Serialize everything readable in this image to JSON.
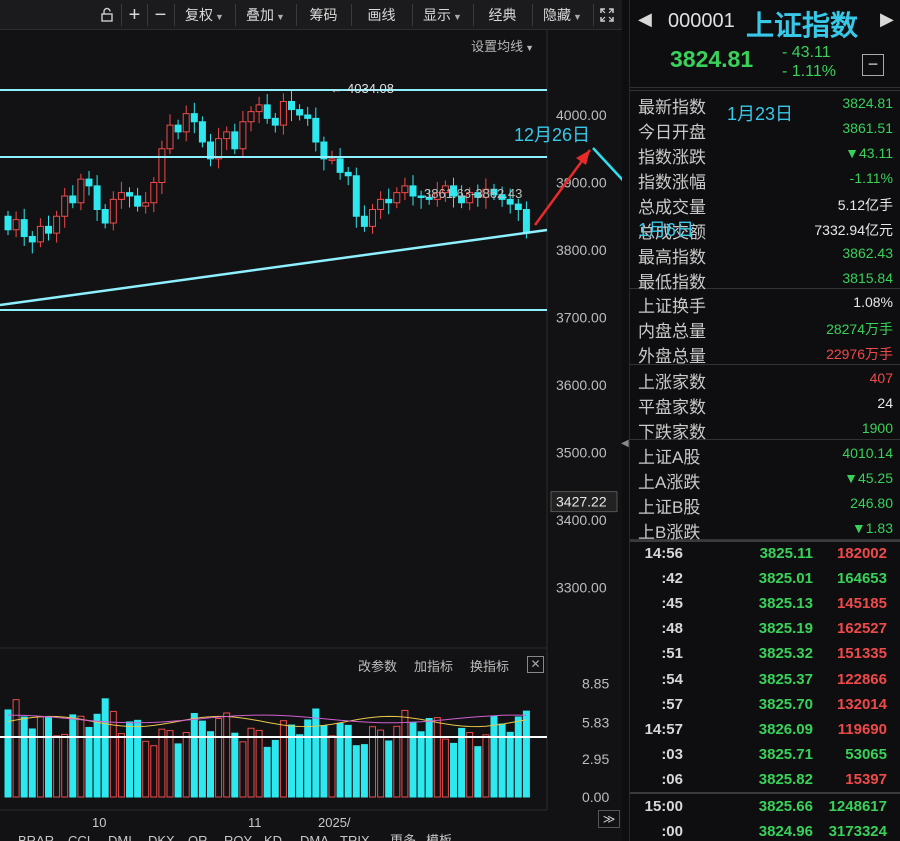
{
  "toolbar": {
    "items": [
      "复权",
      "叠加",
      "筹码",
      "画线",
      "显示",
      "经典",
      "隐藏"
    ],
    "ma_setting": "设置均线"
  },
  "price_axis": [
    "4000.00",
    "3900.00",
    "3800.00",
    "3700.00",
    "3600.00",
    "3500.00",
    "3427.22",
    "3400.00",
    "3300.00"
  ],
  "chart_labels": {
    "high_marker": "4034.08",
    "mid_label": "3861.63-3862.43",
    "ann_dec26": "12月26日",
    "ann_jan23": "1月23日",
    "ann_jan6": "1月6日"
  },
  "volume_panel": {
    "buttons": [
      "改参数",
      "加指标",
      "换指标"
    ],
    "axis": [
      "8.85",
      "5.83",
      "2.95",
      "0.00"
    ]
  },
  "date_axis": [
    "10",
    "11",
    "2025/"
  ],
  "bottom_tabs": [
    "BRAR",
    "CCI",
    "DMI",
    "DKX",
    "OR",
    "ROY",
    "KD",
    "DMA",
    "TRIX",
    "更多",
    "模板"
  ],
  "header": {
    "code": "000001",
    "name": "上证指数",
    "price": "3824.81",
    "change": "- 43.11",
    "change_pct": "- 1.11%"
  },
  "quote_rows": [
    {
      "label": "最新指数",
      "value": "3824.81",
      "color": "green"
    },
    {
      "label": "今日开盘",
      "value": "3861.51",
      "color": "green"
    },
    {
      "label": "指数涨跌",
      "value": "▼43.11",
      "color": "green"
    },
    {
      "label": "指数涨幅",
      "value": "-1.11%",
      "color": "green"
    },
    {
      "label": "总成交量",
      "value": "5.12亿手",
      "color": "white"
    },
    {
      "label": "总成交额",
      "value": "7332.94亿元",
      "color": "white"
    },
    {
      "label": "最高指数",
      "value": "3862.43",
      "color": "green"
    },
    {
      "label": "最低指数",
      "value": "3815.84",
      "color": "green"
    },
    {
      "label": "上证换手",
      "value": "1.08%",
      "color": "white"
    },
    {
      "label": "内盘总量",
      "value": "28274万手",
      "color": "green"
    },
    {
      "label": "外盘总量",
      "value": "22976万手",
      "color": "red"
    },
    {
      "label": "上涨家数",
      "value": "407",
      "color": "red"
    },
    {
      "label": "平盘家数",
      "value": "24",
      "color": "white"
    },
    {
      "label": "下跌家数",
      "value": "1900",
      "color": "green"
    },
    {
      "label": "上证A股",
      "value": "4010.14",
      "color": "green"
    },
    {
      "label": "上A涨跌",
      "value": "▼45.25",
      "color": "green"
    },
    {
      "label": "上证B股",
      "value": "246.80",
      "color": "green"
    },
    {
      "label": "上B涨跌",
      "value": "▼1.83",
      "color": "green"
    }
  ],
  "ticks": [
    {
      "time": "14:56",
      "price": "3825.11",
      "vol": "182002",
      "color": "red"
    },
    {
      "time": ":42",
      "price": "3825.01",
      "vol": "164653",
      "color": "green"
    },
    {
      "time": ":45",
      "price": "3825.13",
      "vol": "145185",
      "color": "red"
    },
    {
      "time": ":48",
      "price": "3825.19",
      "vol": "162527",
      "color": "red"
    },
    {
      "time": ":51",
      "price": "3825.32",
      "vol": "151335",
      "color": "red"
    },
    {
      "time": ":54",
      "price": "3825.37",
      "vol": "122866",
      "color": "red"
    },
    {
      "time": ":57",
      "price": "3825.70",
      "vol": "132014",
      "color": "red"
    },
    {
      "time": "14:57",
      "price": "3826.09",
      "vol": "119690",
      "color": "red"
    },
    {
      "time": ":03",
      "price": "3825.71",
      "vol": "53065",
      "color": "green"
    },
    {
      "time": ":06",
      "price": "3825.82",
      "vol": "15397",
      "color": "red"
    },
    {
      "time": "15:00",
      "price": "3825.66",
      "vol": "1248617",
      "color": "green"
    },
    {
      "time": ":00",
      "price": "3824.96",
      "vol": "3173324",
      "color": "green"
    }
  ],
  "colors": {
    "up": "#ef4a4a",
    "down": "#2ee8f0",
    "hline": "#8ff0ff",
    "arrow_red": "#e82a2a"
  }
}
